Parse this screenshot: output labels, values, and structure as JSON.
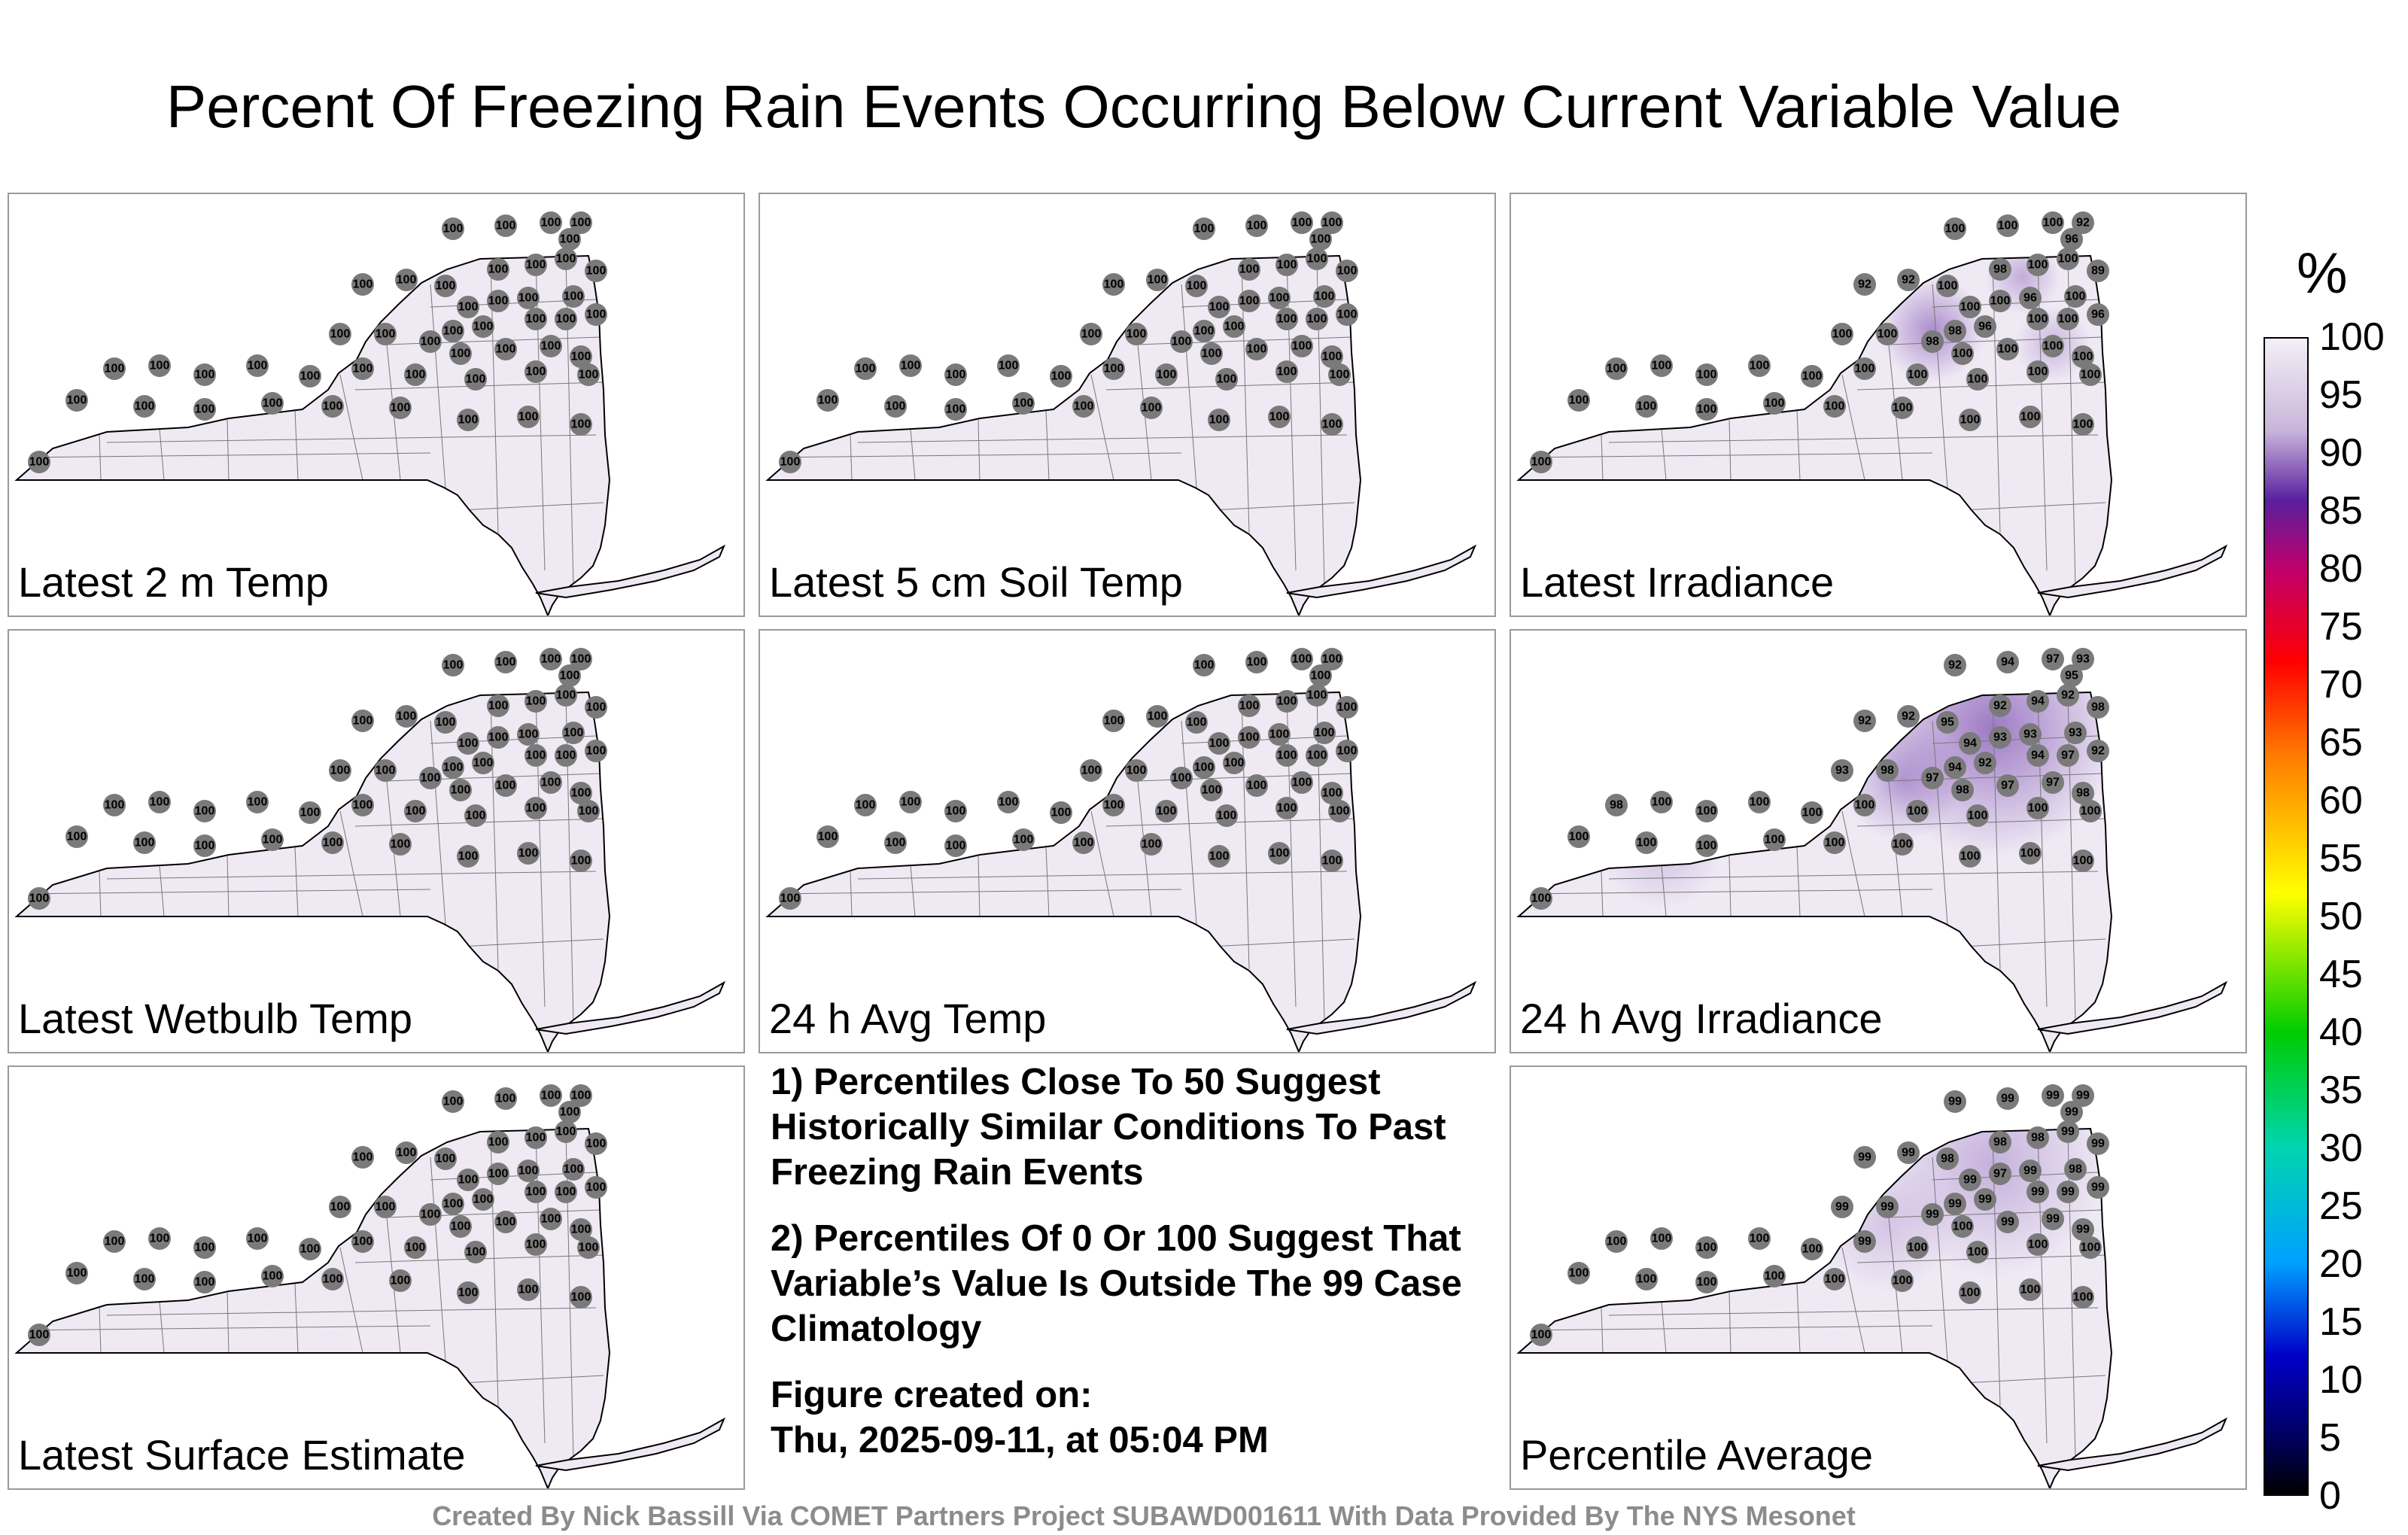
{
  "title": "Percent Of Freezing Rain Events Occurring Below Current Variable Value",
  "legend": {
    "unit": "%",
    "ticks": [
      "100",
      "95",
      "90",
      "85",
      "80",
      "75",
      "70",
      "65",
      "60",
      "55",
      "50",
      "45",
      "40",
      "35",
      "30",
      "25",
      "20",
      "15",
      "10",
      "5",
      "0"
    ],
    "colors": {
      "low": "#000000",
      "mid": "#00cc00",
      "high": "#ffffff",
      "purple": "#5a1f9e",
      "yellow": "#ffff00",
      "red": "#ff0000"
    }
  },
  "panels": [
    {
      "label": "Latest 2 m Temp",
      "values": [
        100,
        100,
        100,
        100,
        100,
        100,
        100,
        100,
        100,
        100,
        100,
        100,
        100,
        100,
        100,
        100,
        100,
        100,
        100,
        100,
        100,
        100,
        100,
        100,
        100,
        100,
        100,
        100,
        100,
        100,
        100,
        100,
        100,
        100,
        100,
        100,
        100,
        100,
        100,
        100,
        100,
        100,
        100,
        100,
        100,
        100,
        100,
        100
      ]
    },
    {
      "label": "Latest 5 cm Soil Temp",
      "values": [
        100,
        100,
        100,
        100,
        100,
        100,
        100,
        100,
        100,
        100,
        100,
        100,
        100,
        100,
        100,
        100,
        100,
        100,
        100,
        100,
        100,
        100,
        100,
        100,
        100,
        100,
        100,
        100,
        100,
        100,
        100,
        100,
        100,
        100,
        100,
        100,
        100,
        100,
        100,
        100,
        100,
        100,
        100,
        100,
        100,
        100,
        100,
        100
      ]
    },
    {
      "label": "Latest Irradiance",
      "values": [
        100,
        100,
        100,
        92,
        96,
        98,
        100,
        100,
        89,
        92,
        92,
        100,
        100,
        100,
        96,
        100,
        98,
        96,
        100,
        100,
        96,
        100,
        100,
        98,
        100,
        100,
        100,
        100,
        100,
        100,
        100,
        100,
        100,
        100,
        100,
        100,
        100,
        100,
        100,
        100,
        100,
        100,
        100,
        100,
        100,
        100,
        100,
        100
      ]
    },
    {
      "label": "Latest Wetbulb Temp",
      "values": [
        100,
        100,
        100,
        100,
        100,
        100,
        100,
        100,
        100,
        100,
        100,
        100,
        100,
        100,
        100,
        100,
        100,
        100,
        100,
        100,
        100,
        100,
        100,
        100,
        100,
        100,
        100,
        100,
        100,
        100,
        100,
        100,
        100,
        100,
        100,
        100,
        100,
        100,
        100,
        100,
        100,
        100,
        100,
        100,
        100,
        100,
        100,
        100
      ]
    },
    {
      "label": "24 h Avg Temp",
      "values": [
        100,
        100,
        100,
        100,
        100,
        100,
        100,
        100,
        100,
        100,
        100,
        100,
        100,
        100,
        100,
        100,
        100,
        100,
        100,
        100,
        100,
        100,
        100,
        100,
        100,
        100,
        100,
        100,
        100,
        100,
        100,
        100,
        100,
        100,
        100,
        100,
        100,
        100,
        100,
        100,
        100,
        100,
        100,
        100,
        100,
        100,
        100,
        100
      ]
    },
    {
      "label": "24 h Avg Irradiance",
      "values": [
        92,
        94,
        97,
        93,
        95,
        92,
        94,
        92,
        98,
        92,
        92,
        95,
        94,
        93,
        93,
        93,
        94,
        92,
        94,
        97,
        92,
        93,
        98,
        97,
        98,
        97,
        97,
        98,
        98,
        100,
        100,
        100,
        100,
        100,
        100,
        100,
        100,
        100,
        100,
        100,
        100,
        100,
        100,
        100,
        100,
        100,
        100,
        100
      ]
    },
    {
      "label": "Latest Surface Estimate",
      "values": [
        100,
        100,
        100,
        100,
        100,
        100,
        100,
        100,
        100,
        100,
        100,
        100,
        100,
        100,
        100,
        100,
        100,
        100,
        100,
        100,
        100,
        100,
        100,
        100,
        100,
        100,
        100,
        100,
        100,
        100,
        100,
        100,
        100,
        100,
        100,
        100,
        100,
        100,
        100,
        100,
        100,
        100,
        100,
        100,
        100,
        100,
        100,
        100
      ]
    },
    {
      "label": "Percentile Average",
      "values": [
        99,
        99,
        99,
        99,
        99,
        98,
        98,
        99,
        99,
        99,
        99,
        98,
        99,
        97,
        99,
        98,
        99,
        99,
        99,
        99,
        99,
        99,
        99,
        99,
        100,
        99,
        99,
        99,
        100,
        100,
        100,
        100,
        100,
        99,
        100,
        100,
        100,
        100,
        100,
        100,
        100,
        100,
        100,
        100,
        100,
        100,
        100,
        100
      ]
    }
  ],
  "notes": {
    "note1": "1) Percentiles Close To 50 Suggest Historically Similar Conditions To Past Freezing Rain Events",
    "note2": "2) Percentiles Of 0 Or 100 Suggest That Variable’s Value Is Outside The 99 Case Climatology",
    "created_label": "Figure created on:",
    "created_value": "Thu, 2025-09-11, at 05:04 PM"
  },
  "credit": "Created By Nick Bassill Via COMET Partners Project SUBAWD001611 With Data Provided By The NYS Mesonet"
}
